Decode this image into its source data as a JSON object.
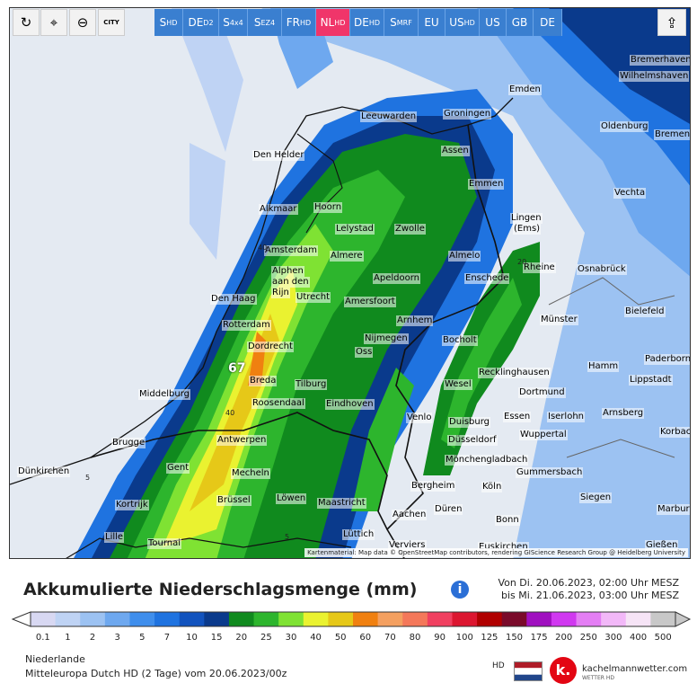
{
  "toolbar": {
    "tools": [
      {
        "name": "refresh-icon",
        "glyph": "↻"
      },
      {
        "name": "pin-icon",
        "glyph": "⌖"
      },
      {
        "name": "zoom-icon",
        "glyph": "⊖"
      },
      {
        "name": "city-toggle-icon",
        "glyph": "CITY"
      }
    ],
    "tabs": [
      {
        "main": "S",
        "sub": "HD"
      },
      {
        "main": "DE",
        "sub": "D2"
      },
      {
        "main": "S",
        "sub": "4x4"
      },
      {
        "main": "S",
        "sub": "EZ4"
      },
      {
        "main": "FR",
        "sub": "HD"
      },
      {
        "main": "NL",
        "sub": "HD",
        "active": true
      },
      {
        "main": "DE",
        "sub": "HD"
      },
      {
        "main": "S",
        "sub": "MRF"
      },
      {
        "main": "EU",
        "sub": ""
      },
      {
        "main": "US",
        "sub": "HD"
      },
      {
        "main": "US",
        "sub": ""
      },
      {
        "main": "GB",
        "sub": ""
      },
      {
        "main": "DE",
        "sub": ""
      }
    ],
    "share_glyph": "⇪"
  },
  "map": {
    "cities": [
      {
        "name": "Bremerhaven"
      },
      {
        "name": "Wilhelmshaven"
      },
      {
        "name": "Emden"
      },
      {
        "name": "Leeuwarden"
      },
      {
        "name": "Groningen"
      },
      {
        "name": "Oldenburg"
      },
      {
        "name": "Bremen"
      },
      {
        "name": "Den Helder"
      },
      {
        "name": "Assen"
      },
      {
        "name": "Emmen"
      },
      {
        "name": "Vechta"
      },
      {
        "name": "Alkmaar"
      },
      {
        "name": "Hoorn"
      },
      {
        "name": "Lelystad"
      },
      {
        "name": "Zwolle"
      },
      {
        "name": "Lingen"
      },
      {
        "name": "(Ems)"
      },
      {
        "name": "Amsterdam"
      },
      {
        "name": "Almere"
      },
      {
        "name": "Almelo"
      },
      {
        "name": "Rheine"
      },
      {
        "name": "Osnabrück"
      },
      {
        "name": "Alphen"
      },
      {
        "name": "aan den"
      },
      {
        "name": "Rijn"
      },
      {
        "name": "Apeldoorn"
      },
      {
        "name": "Enschede"
      },
      {
        "name": "Den Haag"
      },
      {
        "name": "Utrecht"
      },
      {
        "name": "Amersfoort"
      },
      {
        "name": "Bielefeld"
      },
      {
        "name": "Rotterdam"
      },
      {
        "name": "Arnhem"
      },
      {
        "name": "Münster"
      },
      {
        "name": "Nijmegen"
      },
      {
        "name": "Bocholt"
      },
      {
        "name": "Dordrecht"
      },
      {
        "name": "Oss"
      },
      {
        "name": "Paderborn"
      },
      {
        "name": "Hamm"
      },
      {
        "name": "Recklinghausen"
      },
      {
        "name": "Breda"
      },
      {
        "name": "Lippstadt"
      },
      {
        "name": "Middelburg"
      },
      {
        "name": "Tilburg"
      },
      {
        "name": "Wesel"
      },
      {
        "name": "Dortmund"
      },
      {
        "name": "Roosendaal"
      },
      {
        "name": "Eindhoven"
      },
      {
        "name": "Arnsberg"
      },
      {
        "name": "Venlo"
      },
      {
        "name": "Duisburg"
      },
      {
        "name": "Essen"
      },
      {
        "name": "Iserlohn"
      },
      {
        "name": "Brugge"
      },
      {
        "name": "Antwerpen"
      },
      {
        "name": "Korbach"
      },
      {
        "name": "Düsseldorf"
      },
      {
        "name": "Wuppertal"
      },
      {
        "name": "Dünkirchen"
      },
      {
        "name": "Gent"
      },
      {
        "name": "Mönchengladbach"
      },
      {
        "name": "Mecheln"
      },
      {
        "name": "Gummersbach"
      },
      {
        "name": "Bergheim"
      },
      {
        "name": "Köln"
      },
      {
        "name": "Kortrijk"
      },
      {
        "name": "Löwen"
      },
      {
        "name": "Brüssel"
      },
      {
        "name": "Siegen"
      },
      {
        "name": "Maastricht"
      },
      {
        "name": "Düren"
      },
      {
        "name": "Marburg"
      },
      {
        "name": "Aachen"
      },
      {
        "name": "Bonn"
      },
      {
        "name": "Lille"
      },
      {
        "name": "Tournai"
      },
      {
        "name": "Lüttich"
      },
      {
        "name": "Verviers"
      },
      {
        "name": "Euskirchen"
      },
      {
        "name": "Gießen"
      }
    ],
    "max_label": "67",
    "contours": [
      {
        "label": "40"
      },
      {
        "label": "40"
      },
      {
        "label": "20"
      },
      {
        "label": "5"
      },
      {
        "label": "5"
      }
    ],
    "attribution": "Kartenmaterial: Map data © OpenStreetMap contributors, rendering GIScience Research Group @ Heidelberg University"
  },
  "legend": {
    "title": "Akkumulierte Niederschlagsmenge (mm)",
    "info_glyph": "i",
    "period_from": "Von Di. 20.06.2023, 02:00 Uhr MESZ",
    "period_to": "bis Mi. 21.06.2023, 03:00 Uhr MESZ",
    "scale": [
      {
        "label": "0.1",
        "color": "#d8d8f2"
      },
      {
        "label": "1",
        "color": "#bfd3f4"
      },
      {
        "label": "2",
        "color": "#9cc2f2"
      },
      {
        "label": "3",
        "color": "#6ea8ef"
      },
      {
        "label": "5",
        "color": "#3f8eec"
      },
      {
        "label": "7",
        "color": "#1f73e0"
      },
      {
        "label": "10",
        "color": "#1253be"
      },
      {
        "label": "15",
        "color": "#0a3a8c"
      },
      {
        "label": "20",
        "color": "#108a1e"
      },
      {
        "label": "25",
        "color": "#2db52d"
      },
      {
        "label": "30",
        "color": "#7fe233"
      },
      {
        "label": "40",
        "color": "#eaf230"
      },
      {
        "label": "50",
        "color": "#e6c818"
      },
      {
        "label": "60",
        "color": "#f08010"
      },
      {
        "label": "70",
        "color": "#f4a060"
      },
      {
        "label": "80",
        "color": "#f4785a"
      },
      {
        "label": "90",
        "color": "#f04060"
      },
      {
        "label": "100",
        "color": "#dc1630"
      },
      {
        "label": "125",
        "color": "#b00000"
      },
      {
        "label": "150",
        "color": "#7a0a2a"
      },
      {
        "label": "175",
        "color": "#a010c0"
      },
      {
        "label": "200",
        "color": "#d038f0"
      },
      {
        "label": "250",
        "color": "#e47ef4"
      },
      {
        "label": "300",
        "color": "#f2b8f8"
      },
      {
        "label": "400",
        "color": "#f6e4f6"
      },
      {
        "label": "500",
        "color": "#c8c8c8"
      }
    ],
    "region": "Niederlande",
    "model": "Mitteleuropa Dutch HD  (2 Tage)  vom 20.06.2023/00z",
    "hd_label": "HD",
    "logo_glyph": "k.",
    "site": "kachelmannwetter.com",
    "site_sub": "WETTER HD"
  }
}
